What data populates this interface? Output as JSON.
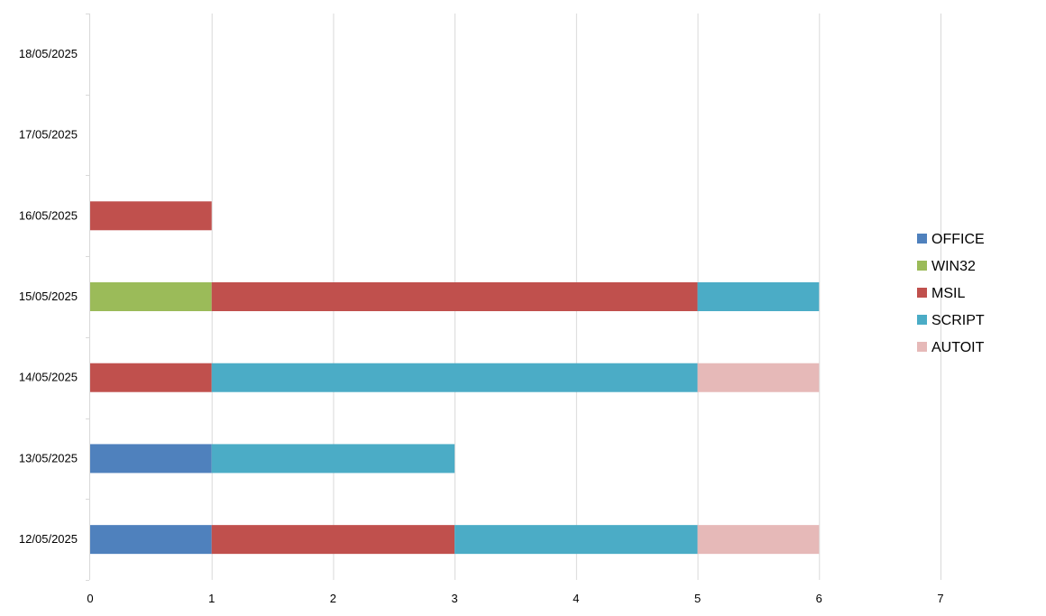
{
  "chart_data": {
    "type": "bar",
    "orientation": "horizontal",
    "stacked": true,
    "title": "",
    "xlabel": "",
    "ylabel": "",
    "categories": [
      "12/05/2025",
      "13/05/2025",
      "14/05/2025",
      "15/05/2025",
      "16/05/2025",
      "17/05/2025",
      "18/05/2025"
    ],
    "x_ticks": [
      0,
      1,
      2,
      3,
      4,
      5,
      6,
      7
    ],
    "xlim": [
      0,
      7
    ],
    "grid": "vertical",
    "legend_position": "right",
    "series": [
      {
        "name": "OFFICE",
        "color": "#4f81bd",
        "values": [
          1,
          1,
          0,
          0,
          0,
          0,
          0
        ]
      },
      {
        "name": "WIN32",
        "color": "#9bbb59",
        "values": [
          0,
          0,
          0,
          1,
          0,
          0,
          0
        ]
      },
      {
        "name": "MSIL",
        "color": "#c0504d",
        "values": [
          2,
          0,
          1,
          4,
          1,
          0,
          0
        ]
      },
      {
        "name": "SCRIPT",
        "color": "#4bacc6",
        "values": [
          2,
          2,
          4,
          1,
          0,
          0,
          0
        ]
      },
      {
        "name": "AUTOIT",
        "color": "#e6b9b8",
        "values": [
          1,
          0,
          1,
          0,
          0,
          0,
          0
        ]
      }
    ]
  }
}
